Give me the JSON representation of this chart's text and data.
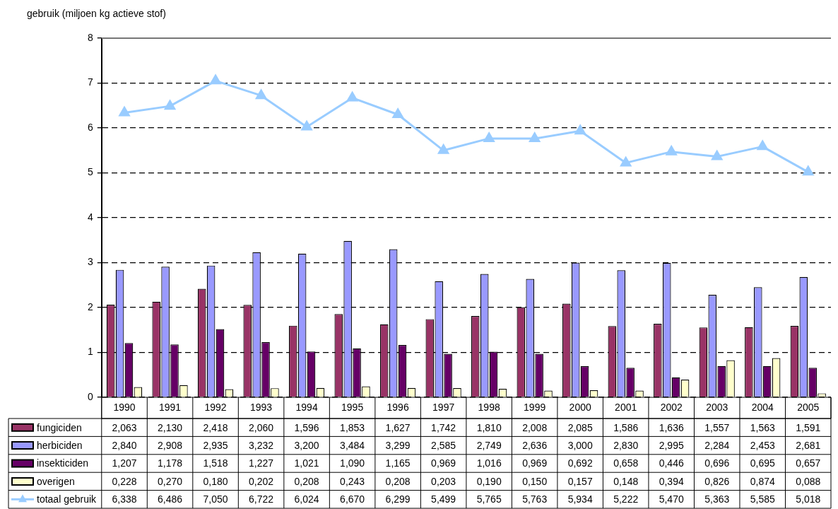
{
  "chart_data": {
    "type": "bar",
    "ylabel": "gebruik (miljoen kg actieve stof)",
    "categories": [
      "1990",
      "1991",
      "1992",
      "1993",
      "1994",
      "1995",
      "1996",
      "1997",
      "1998",
      "1999",
      "2000",
      "2001",
      "2002",
      "2003",
      "2004",
      "2005"
    ],
    "ylim": [
      0,
      8
    ],
    "yticks": [
      0,
      1,
      2,
      3,
      4,
      5,
      6,
      7,
      8
    ],
    "grid": "y",
    "legend": "bottom",
    "series": [
      {
        "name": "fungiciden",
        "color": "#993366",
        "values": [
          2.063,
          2.13,
          2.418,
          2.06,
          1.596,
          1.853,
          1.627,
          1.742,
          1.81,
          2.008,
          2.085,
          1.586,
          1.636,
          1.557,
          1.563,
          1.591
        ],
        "value_labels": [
          "2,063",
          "2,130",
          "2,418",
          "2,060",
          "1,596",
          "1,853",
          "1,627",
          "1,742",
          "1,810",
          "2,008",
          "2,085",
          "1,586",
          "1,636",
          "1,557",
          "1,563",
          "1,591"
        ]
      },
      {
        "name": "herbiciden",
        "color": "#9999ff",
        "values": [
          2.84,
          2.908,
          2.935,
          3.232,
          3.2,
          3.484,
          3.299,
          2.585,
          2.749,
          2.636,
          3.0,
          2.83,
          2.995,
          2.284,
          2.453,
          2.681
        ],
        "value_labels": [
          "2,840",
          "2,908",
          "2,935",
          "3,232",
          "3,200",
          "3,484",
          "3,299",
          "2,585",
          "2,749",
          "2,636",
          "3,000",
          "2,830",
          "2,995",
          "2,284",
          "2,453",
          "2,681"
        ]
      },
      {
        "name": "insekticiden",
        "color": "#660066",
        "values": [
          1.207,
          1.178,
          1.518,
          1.227,
          1.021,
          1.09,
          1.165,
          0.969,
          1.016,
          0.969,
          0.692,
          0.658,
          0.446,
          0.696,
          0.695,
          0.657
        ],
        "value_labels": [
          "1,207",
          "1,178",
          "1,518",
          "1,227",
          "1,021",
          "1,090",
          "1,165",
          "0,969",
          "1,016",
          "0,969",
          "0,692",
          "0,658",
          "0,446",
          "0,696",
          "0,695",
          "0,657"
        ]
      },
      {
        "name": "overigen",
        "color": "#ffffcc",
        "values": [
          0.228,
          0.27,
          0.18,
          0.202,
          0.208,
          0.243,
          0.208,
          0.203,
          0.19,
          0.15,
          0.157,
          0.148,
          0.394,
          0.826,
          0.874,
          0.088
        ],
        "value_labels": [
          "0,228",
          "0,270",
          "0,180",
          "0,202",
          "0,208",
          "0,243",
          "0,208",
          "0,203",
          "0,190",
          "0,150",
          "0,157",
          "0,148",
          "0,394",
          "0,826",
          "0,874",
          "0,088"
        ]
      },
      {
        "name": "totaal gebruik",
        "type": "line",
        "marker": "triangle",
        "color": "#99ccff",
        "values": [
          6.338,
          6.486,
          7.05,
          6.722,
          6.024,
          6.67,
          6.299,
          5.499,
          5.765,
          5.763,
          5.934,
          5.222,
          5.47,
          5.363,
          5.585,
          5.018
        ],
        "value_labels": [
          "6,338",
          "6,486",
          "7,050",
          "6,722",
          "6,024",
          "6,670",
          "6,299",
          "5,499",
          "5,765",
          "5,763",
          "5,934",
          "5,222",
          "5,470",
          "5,363",
          "5,585",
          "5,018"
        ]
      }
    ]
  }
}
